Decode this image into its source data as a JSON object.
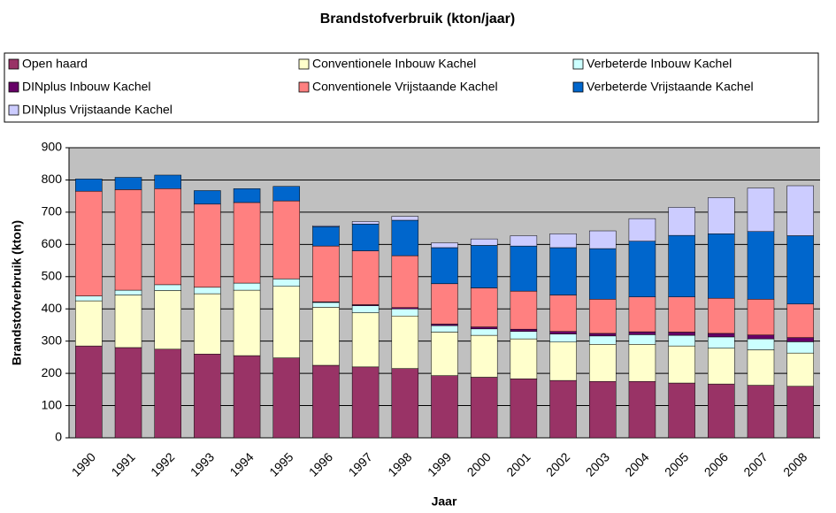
{
  "chart_data": {
    "type": "stacked-bar",
    "title": "Brandstofverbruik (kton/jaar)",
    "x_label": "Jaar",
    "y_label": "Brandstofverbruik (kton)",
    "categories": [
      "1990",
      "1991",
      "1992",
      "1993",
      "1994",
      "1995",
      "1996",
      "1997",
      "1998",
      "1999",
      "2000",
      "2001",
      "2002",
      "2003",
      "2004",
      "2005",
      "2006",
      "2007",
      "2008"
    ],
    "ylim": [
      0,
      900
    ],
    "yticks": [
      0,
      100,
      200,
      300,
      400,
      500,
      600,
      700,
      800,
      900
    ],
    "grid": true,
    "series": [
      {
        "name": "Open haard",
        "color": "#993366",
        "values": [
          285,
          280,
          275,
          260,
          255,
          248,
          225,
          220,
          215,
          193,
          188,
          183,
          178,
          175,
          175,
          170,
          167,
          163,
          160
        ]
      },
      {
        "name": "Conventionele Inbouw Kachel",
        "color": "#ffffcc",
        "values": [
          140,
          163,
          182,
          187,
          203,
          222,
          180,
          168,
          163,
          135,
          130,
          124,
          119,
          115,
          115,
          115,
          111,
          110,
          103
        ]
      },
      {
        "name": "Verbeterde Inbouw Kachel",
        "color": "#ccffff",
        "values": [
          15,
          15,
          18,
          20,
          22,
          23,
          15,
          22,
          22,
          20,
          20,
          23,
          25,
          26,
          30,
          33,
          35,
          34,
          35
        ]
      },
      {
        "name": "DINplus Inbouw Kachel",
        "color": "#660066",
        "values": [
          0,
          0,
          0,
          0,
          0,
          0,
          2,
          3,
          4,
          5,
          6,
          7,
          8,
          8,
          9,
          10,
          11,
          12,
          13
        ]
      },
      {
        "name": "Conventionele Vrijstaande Kachel",
        "color": "#ff8080",
        "values": [
          325,
          312,
          298,
          258,
          250,
          242,
          173,
          167,
          161,
          125,
          121,
          118,
          113,
          106,
          108,
          109,
          109,
          111,
          104
        ]
      },
      {
        "name": "Verbeterde Vrijstaande Kachel",
        "color": "#0066cc",
        "values": [
          38,
          38,
          42,
          42,
          43,
          45,
          60,
          83,
          110,
          112,
          132,
          140,
          147,
          157,
          173,
          191,
          200,
          210,
          212
        ]
      },
      {
        "name": "DINplus Vrijstaande Kachel",
        "color": "#ccccff",
        "values": [
          0,
          0,
          0,
          0,
          0,
          0,
          3,
          8,
          12,
          15,
          20,
          32,
          43,
          55,
          70,
          87,
          112,
          135,
          155
        ]
      }
    ]
  }
}
